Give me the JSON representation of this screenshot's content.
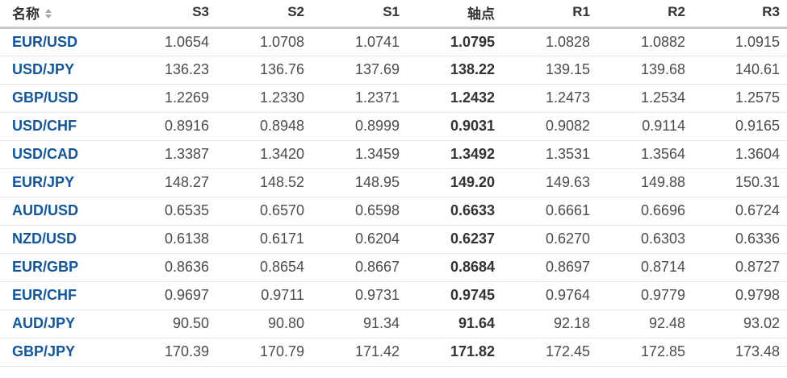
{
  "table": {
    "columns": [
      {
        "key": "name",
        "label": "名称",
        "sortable": true
      },
      {
        "key": "s3",
        "label": "S3",
        "sortable": false
      },
      {
        "key": "s2",
        "label": "S2",
        "sortable": false
      },
      {
        "key": "s1",
        "label": "S1",
        "sortable": false
      },
      {
        "key": "pivot",
        "label": "轴点",
        "sortable": false
      },
      {
        "key": "r1",
        "label": "R1",
        "sortable": false
      },
      {
        "key": "r2",
        "label": "R2",
        "sortable": false
      },
      {
        "key": "r3",
        "label": "R3",
        "sortable": false
      }
    ],
    "rows": [
      {
        "name": "EUR/USD",
        "values": [
          "1.0654",
          "1.0708",
          "1.0741",
          "1.0795",
          "1.0828",
          "1.0882",
          "1.0915"
        ]
      },
      {
        "name": "USD/JPY",
        "values": [
          "136.23",
          "136.76",
          "137.69",
          "138.22",
          "139.15",
          "139.68",
          "140.61"
        ]
      },
      {
        "name": "GBP/USD",
        "values": [
          "1.2269",
          "1.2330",
          "1.2371",
          "1.2432",
          "1.2473",
          "1.2534",
          "1.2575"
        ]
      },
      {
        "name": "USD/CHF",
        "values": [
          "0.8916",
          "0.8948",
          "0.8999",
          "0.9031",
          "0.9082",
          "0.9114",
          "0.9165"
        ]
      },
      {
        "name": "USD/CAD",
        "values": [
          "1.3387",
          "1.3420",
          "1.3459",
          "1.3492",
          "1.3531",
          "1.3564",
          "1.3604"
        ]
      },
      {
        "name": "EUR/JPY",
        "values": [
          "148.27",
          "148.52",
          "148.95",
          "149.20",
          "149.63",
          "149.88",
          "150.31"
        ]
      },
      {
        "name": "AUD/USD",
        "values": [
          "0.6535",
          "0.6570",
          "0.6598",
          "0.6633",
          "0.6661",
          "0.6696",
          "0.6724"
        ]
      },
      {
        "name": "NZD/USD",
        "values": [
          "0.6138",
          "0.6171",
          "0.6204",
          "0.6237",
          "0.6270",
          "0.6303",
          "0.6336"
        ]
      },
      {
        "name": "EUR/GBP",
        "values": [
          "0.8636",
          "0.8654",
          "0.8667",
          "0.8684",
          "0.8697",
          "0.8714",
          "0.8727"
        ]
      },
      {
        "name": "EUR/CHF",
        "values": [
          "0.9697",
          "0.9711",
          "0.9731",
          "0.9745",
          "0.9764",
          "0.9779",
          "0.9798"
        ]
      },
      {
        "name": "AUD/JPY",
        "values": [
          "90.50",
          "90.80",
          "91.34",
          "91.64",
          "92.18",
          "92.48",
          "93.02"
        ]
      },
      {
        "name": "GBP/JPY",
        "values": [
          "170.39",
          "170.79",
          "171.42",
          "171.82",
          "172.45",
          "172.85",
          "173.48"
        ]
      }
    ]
  },
  "icons": {
    "sort": "sort-arrows-icon"
  },
  "colors": {
    "link_blue": "#1256a0",
    "header_text": "#333333",
    "value_text": "#4c4c4c",
    "pivot_text": "#333333",
    "header_border": "#c9c9c9",
    "row_border": "#e6e6e6",
    "sort_icon": "#a8a8a8",
    "background": "#ffffff"
  }
}
